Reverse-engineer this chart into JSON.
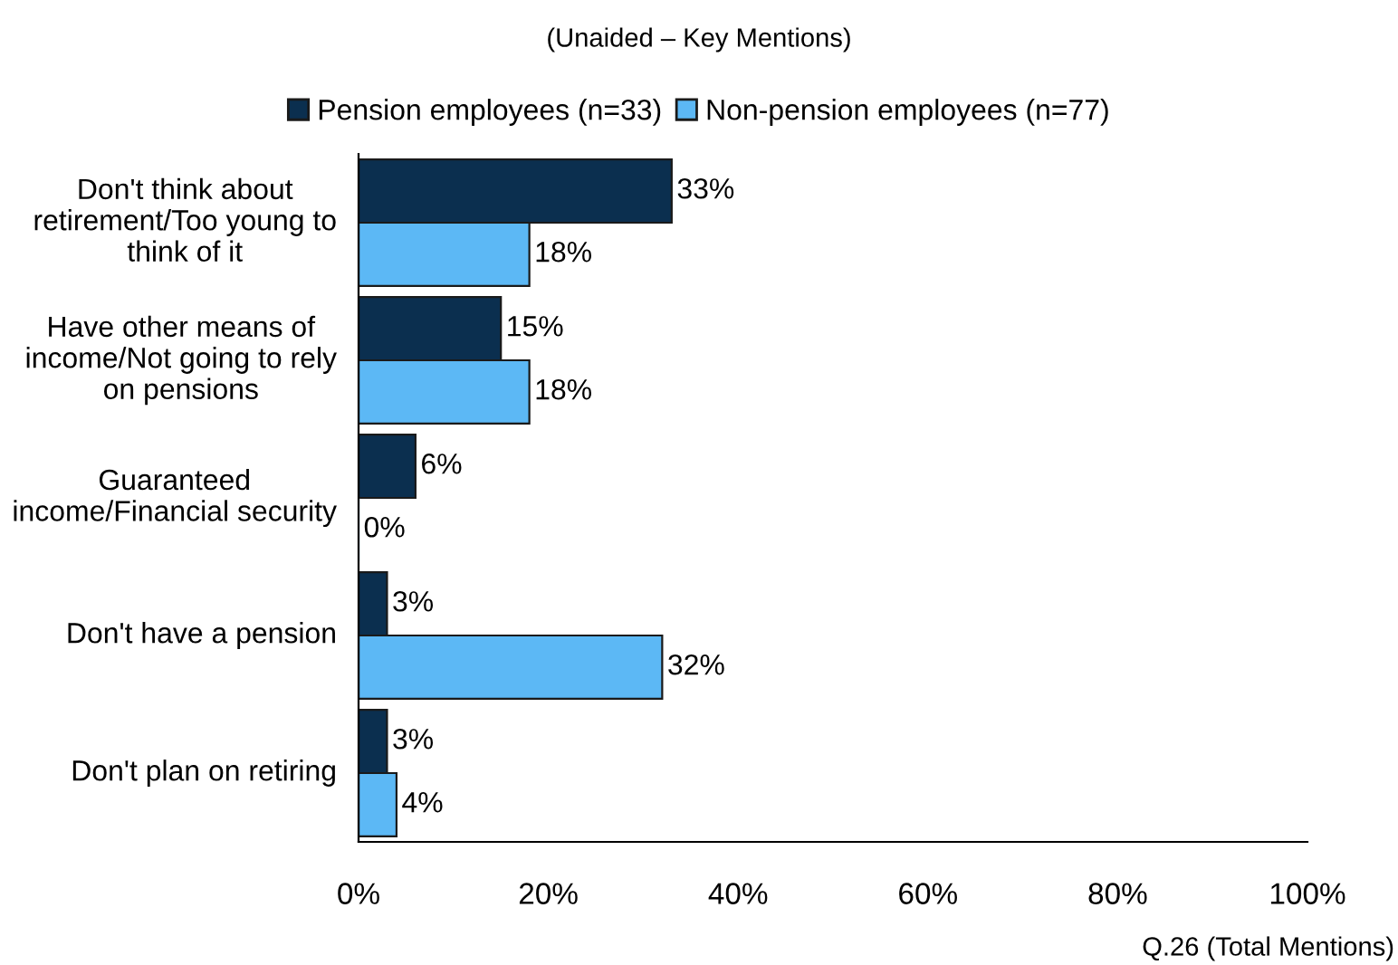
{
  "chart_data": {
    "type": "bar",
    "orientation": "horizontal",
    "subtitle": "(Unaided – Key Mentions)",
    "categories": [
      "Don't think about retirement/Too young to think of it",
      "Have other means of income/Not going to rely on pensions",
      "Guaranteed income/Financial security",
      "Don't have a pension",
      "Don't plan on retiring"
    ],
    "series": [
      {
        "name": "Pension employees (n=33)",
        "color": "#0b2f4f",
        "values": [
          33,
          15,
          6,
          3,
          3
        ],
        "value_labels": [
          "33%",
          "15%",
          "6%",
          "3%",
          "3%"
        ]
      },
      {
        "name": "Non-pension employees (n=77)",
        "color": "#5cb8f5",
        "values": [
          18,
          18,
          0,
          32,
          4
        ],
        "value_labels": [
          "18%",
          "18%",
          "0%",
          "32%",
          "4%"
        ]
      }
    ],
    "xlim": [
      0,
      100
    ],
    "xticks": [
      {
        "value": 0,
        "label": "0%"
      },
      {
        "value": 20,
        "label": "20%"
      },
      {
        "value": 40,
        "label": "40%"
      },
      {
        "value": 60,
        "label": "60%"
      },
      {
        "value": 80,
        "label": "80%"
      },
      {
        "value": 100,
        "label": "100%"
      }
    ],
    "legend": "top",
    "grid": false,
    "annotations": [
      "Q.26 (Total Mentions)"
    ]
  }
}
